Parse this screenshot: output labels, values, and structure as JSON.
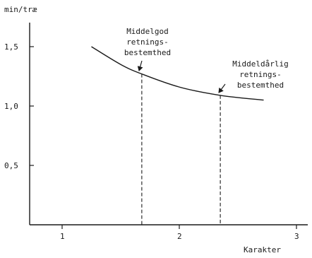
{
  "chart_data": {
    "type": "line",
    "title": "",
    "ylabel": "min/træ",
    "xlabel": "Karakter",
    "xlim": [
      0.75,
      3.05
    ],
    "ylim": [
      0,
      1.75
    ],
    "x_ticks": [
      1,
      2,
      3
    ],
    "x_tick_labels": [
      "1",
      "2",
      "3"
    ],
    "y_ticks": [
      0.5,
      1.0,
      1.5
    ],
    "y_tick_labels": [
      "0,5",
      "1,0",
      "1,5"
    ],
    "grid": false,
    "series": [
      {
        "x": [
          1.25,
          1.5,
          1.68,
          2.0,
          2.35,
          2.72
        ],
        "y": [
          1.5,
          1.35,
          1.27,
          1.16,
          1.09,
          1.05
        ]
      }
    ],
    "reference_lines": [
      {
        "x": 1.68,
        "y": 1.27
      },
      {
        "x": 2.35,
        "y": 1.09
      }
    ],
    "annotations": [
      {
        "lines": [
          "Middelgod",
          "retnings-",
          "bestemthed"
        ],
        "x": 1.68,
        "y": 1.27
      },
      {
        "lines": [
          "Middeldårlig",
          "retnings-",
          "bestemthed"
        ],
        "x": 2.35,
        "y": 1.09
      }
    ]
  }
}
